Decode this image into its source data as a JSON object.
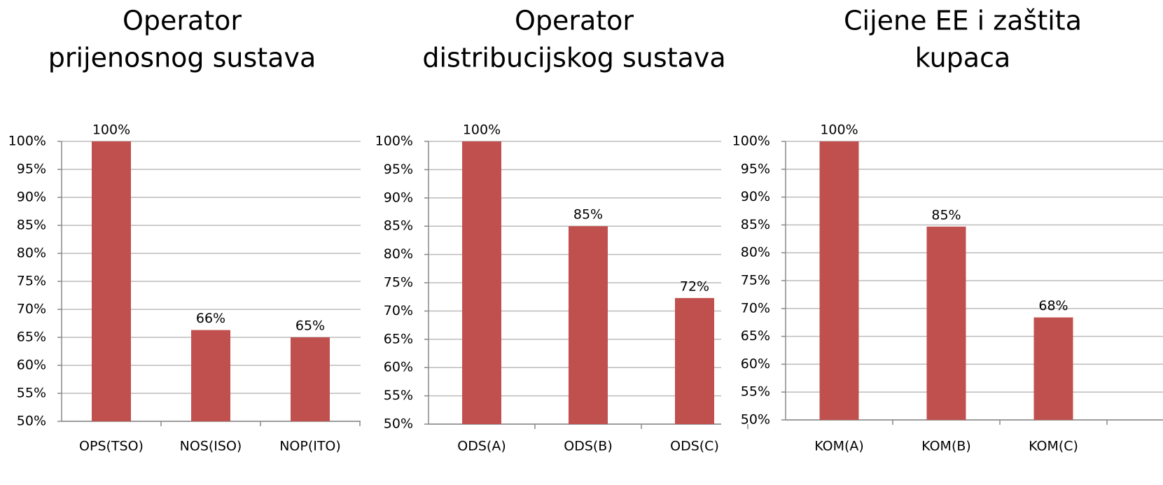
{
  "chart_data": [
    {
      "type": "bar",
      "title": [
        "Operator",
        "prijenosnog sustava"
      ],
      "categories": [
        "OPS(TSO)",
        "NOS(ISO)",
        "NOP(ITO)"
      ],
      "values": [
        100,
        66.3,
        65
      ],
      "value_labels": [
        "100%",
        "66%",
        "65%"
      ],
      "color": "#c0504d",
      "ylim": [
        50,
        100
      ],
      "yticks": [
        {
          "value": 50,
          "label": "50%"
        },
        {
          "value": 55,
          "label": "55%"
        },
        {
          "value": 60,
          "label": "60%"
        },
        {
          "value": 65,
          "label": "65%"
        },
        {
          "value": 70,
          "label": "70%"
        },
        {
          "value": 75,
          "label": "75%"
        },
        {
          "value": 80,
          "label": "80%"
        },
        {
          "value": 85,
          "label": "85%"
        },
        {
          "value": 90,
          "label": "90%"
        },
        {
          "value": 95,
          "label": "95%"
        },
        {
          "value": 100,
          "label": "100%"
        }
      ],
      "grid": true
    },
    {
      "type": "bar",
      "title": [
        "Operator",
        "distribucijskog sustava"
      ],
      "categories": [
        "ODS(A)",
        "ODS(B)",
        "ODS(C)"
      ],
      "values": [
        100,
        85,
        72.3
      ],
      "value_labels": [
        "100%",
        "85%",
        "72%"
      ],
      "color": "#c0504d",
      "ylim": [
        50,
        100
      ],
      "yticks": [
        {
          "value": 50,
          "label": "50%"
        },
        {
          "value": 55,
          "label": "55%"
        },
        {
          "value": 60,
          "label": "60%"
        },
        {
          "value": 65,
          "label": "65%"
        },
        {
          "value": 70,
          "label": "70%"
        },
        {
          "value": 75,
          "label": "75%"
        },
        {
          "value": 80,
          "label": "80%"
        },
        {
          "value": 85,
          "label": "85%"
        },
        {
          "value": 90,
          "label": "90%"
        },
        {
          "value": 95,
          "label": "95%"
        },
        {
          "value": 100,
          "label": "100%"
        }
      ],
      "grid": true
    },
    {
      "type": "bar",
      "title": [
        "Cijene EE i zaštita",
        "kupaca"
      ],
      "categories": [
        "KOM(A)",
        "KOM(B)",
        "KOM(C)"
      ],
      "values": [
        100,
        84.7,
        68.4
      ],
      "value_labels": [
        "100%",
        "85%",
        "68%"
      ],
      "color": "#c0504d",
      "ylim": [
        50,
        100
      ],
      "yticks": [
        {
          "value": 50,
          "label": "50%"
        },
        {
          "value": 55,
          "label": "55%"
        },
        {
          "value": 60,
          "label": "60%"
        },
        {
          "value": 65,
          "label": "65%"
        },
        {
          "value": 70,
          "label": "70%"
        },
        {
          "value": 75,
          "label": "75%"
        },
        {
          "value": 80,
          "label": "80%"
        },
        {
          "value": 85,
          "label": "85%"
        },
        {
          "value": 90,
          "label": "90%"
        },
        {
          "value": 95,
          "label": "95%"
        },
        {
          "value": 100,
          "label": "100%"
        }
      ],
      "grid": true
    }
  ]
}
